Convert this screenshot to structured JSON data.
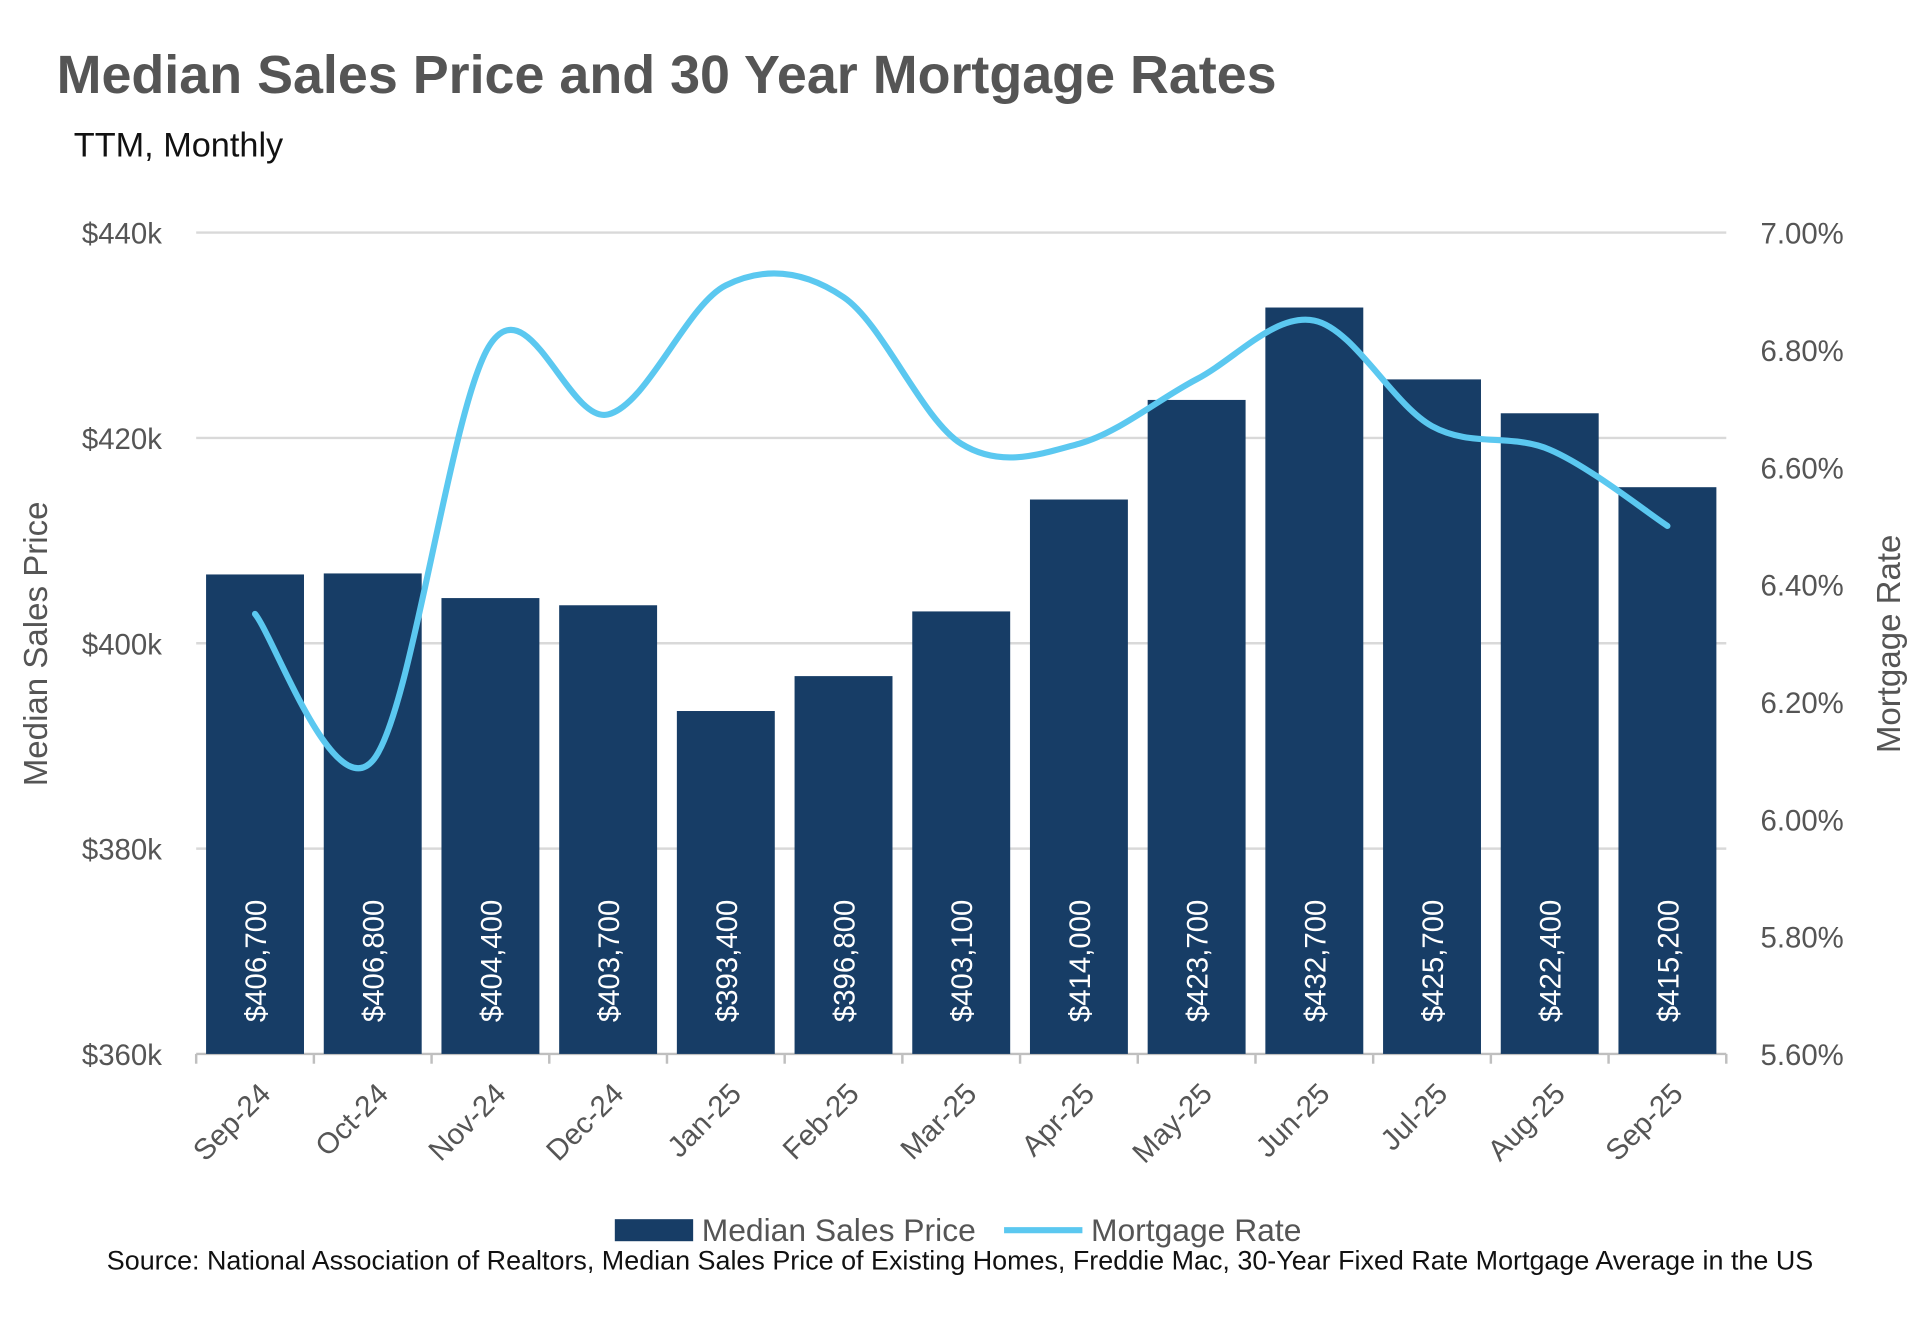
{
  "chart_data": {
    "type": "bar+line",
    "title": "Median Sales Price and 30 Year Mortgage Rates",
    "subtitle": "TTM, Monthly",
    "categories": [
      "Sep-24",
      "Oct-24",
      "Nov-24",
      "Dec-24",
      "Jan-25",
      "Feb-25",
      "Mar-25",
      "Apr-25",
      "May-25",
      "Jun-25",
      "Jul-25",
      "Aug-25",
      "Sep-25"
    ],
    "series": [
      {
        "name": "Median Sales Price",
        "type": "bar",
        "axis": "left",
        "color": "#173d66",
        "values": [
          406700,
          406800,
          404400,
          403700,
          393400,
          396800,
          403100,
          414000,
          423700,
          432700,
          425700,
          422400,
          415200
        ],
        "data_labels": [
          "$406,700",
          "$406,800",
          "$404,400",
          "$403,700",
          "$393,400",
          "$396,800",
          "$403,100",
          "$414,000",
          "$423,700",
          "$432,700",
          "$425,700",
          "$422,400",
          "$415,200"
        ]
      },
      {
        "name": "Mortgage Rate",
        "type": "line",
        "axis": "right",
        "color": "#5bc8f0",
        "smooth": true,
        "values": [
          6.35,
          6.1,
          6.81,
          6.69,
          6.91,
          6.89,
          6.64,
          6.64,
          6.75,
          6.85,
          6.67,
          6.63,
          6.5
        ]
      }
    ],
    "ylabel_left": "Median Sales Price",
    "ylabel_right": "Mortgage Rate",
    "ylim_left": [
      360000,
      440000
    ],
    "yticks_left": [
      "$360k",
      "$380k",
      "$400k",
      "$420k",
      "$440k"
    ],
    "ylim_right": [
      5.6,
      7.0
    ],
    "yticks_right": [
      "5.60%",
      "5.80%",
      "6.00%",
      "6.20%",
      "6.40%",
      "6.60%",
      "6.80%",
      "7.00%"
    ],
    "grid": true,
    "legend": "bottom",
    "source": "Source: National Association of Realtors, Median Sales Price of Existing Homes, Freddie Mac, 30-Year Fixed Rate Mortgage Average in the US"
  }
}
